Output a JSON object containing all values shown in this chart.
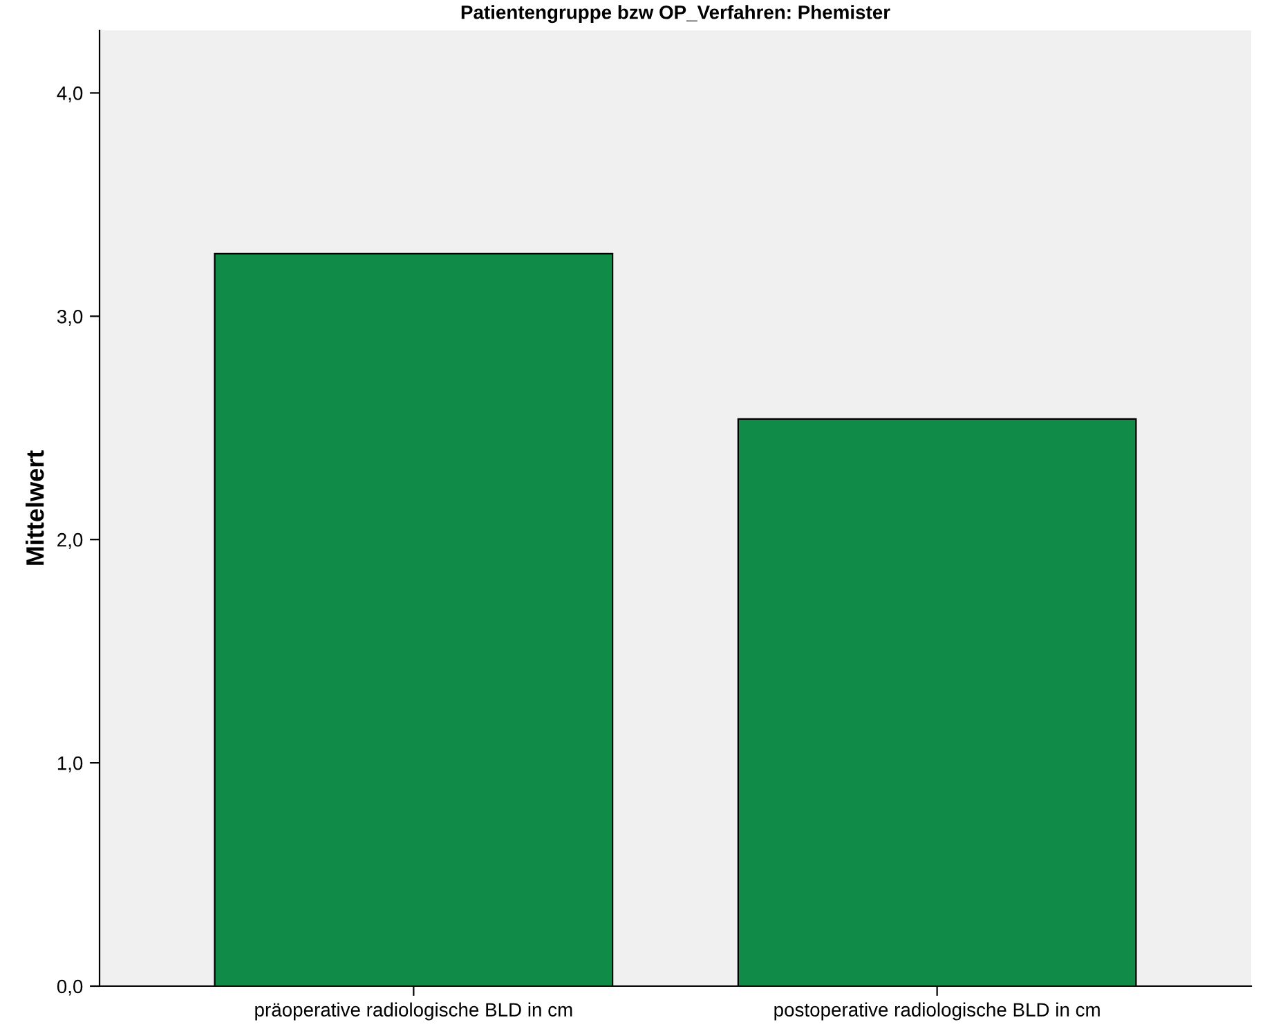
{
  "chart_data": {
    "type": "bar",
    "title": "Patientengruppe bzw OP_Verfahren: Phemister",
    "ylabel": "Mittelwert",
    "categories": [
      "präoperative radiologische BLD in cm",
      "postoperative radiologische BLD in cm"
    ],
    "values": [
      3.28,
      2.54
    ],
    "color": "#118c48",
    "ylim": [
      0,
      4.28
    ],
    "yticks": [
      {
        "value": 0,
        "label": "0,0"
      },
      {
        "value": 1,
        "label": "1,0"
      },
      {
        "value": 2,
        "label": "2,0"
      },
      {
        "value": 3,
        "label": "3,0"
      },
      {
        "value": 4,
        "label": "4,0"
      }
    ],
    "grid": false,
    "legend": false
  }
}
